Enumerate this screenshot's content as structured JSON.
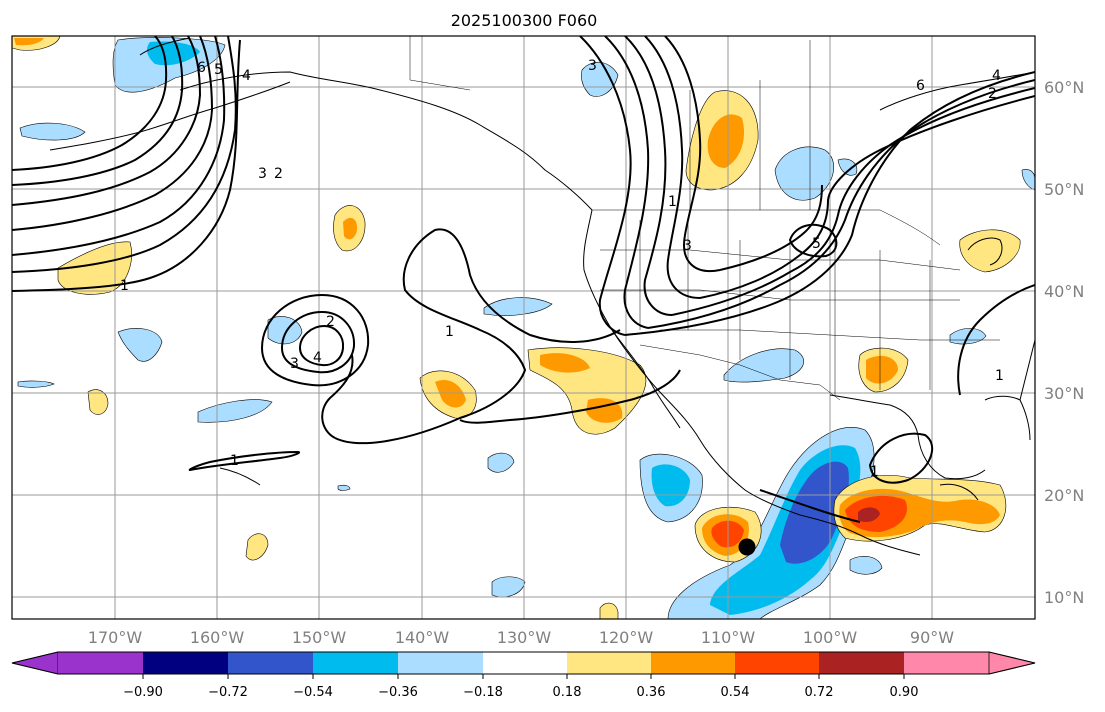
{
  "title": "2025100300 F060",
  "map": {
    "lon_labels": [
      "170°W",
      "160°W",
      "150°W",
      "140°W",
      "130°W",
      "120°W",
      "110°W",
      "100°W",
      "90°W"
    ],
    "lat_labels": [
      "60°N",
      "50°N",
      "40°N",
      "30°N",
      "20°N",
      "10°N"
    ],
    "gridlines": true
  },
  "colorbar": {
    "tick_labels": [
      "−0.90",
      "−0.72",
      "−0.54",
      "−0.36",
      "−0.18",
      "0.18",
      "0.36",
      "0.54",
      "0.72",
      "0.90"
    ],
    "colors": [
      "#9933cc",
      "#000080",
      "#3355cc",
      "#00bbee",
      "#aaddff",
      "#ffffff",
      "#ffe680",
      "#ff9900",
      "#ff4400",
      "#aa2222",
      "#ff88aa"
    ],
    "extend": "both"
  },
  "contour_labels": [
    "6",
    "5",
    "4",
    "3",
    "2",
    "1",
    "3",
    "1",
    "2",
    "4",
    "3",
    "1",
    "1",
    "3",
    "6",
    "4",
    "2",
    "5",
    "1",
    "1"
  ],
  "marker": "storm-center-dot"
}
